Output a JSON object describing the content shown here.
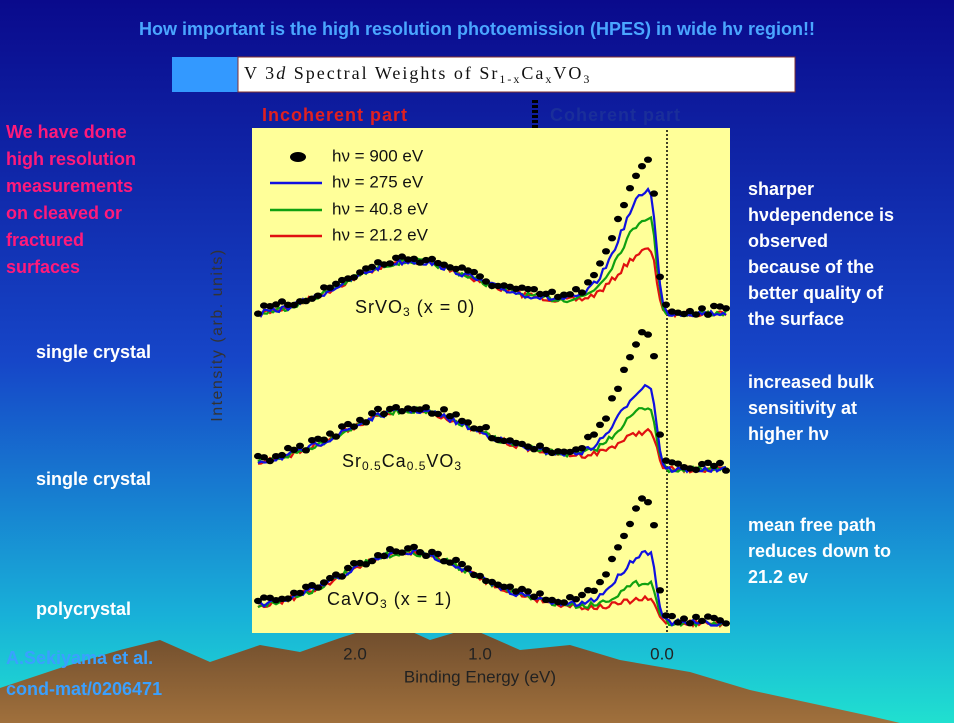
{
  "header": {
    "title": "How important is the high resolution photoemission (HPES) in wide hν region!!"
  },
  "banner": {
    "parts": [
      "V 3",
      "d",
      " Spectral Weights of Sr",
      "1-x",
      "Ca",
      "x",
      "VO",
      "3"
    ]
  },
  "chart": {
    "incoherent": "Incoherent part",
    "coherent": "Coherent part",
    "y_label": "Intensity (arb. units)",
    "x_label": "Binding Energy (eV)",
    "x_ticks": [
      "2.0",
      "1.0",
      "0.0"
    ],
    "legend": [
      "hν = 900 eV",
      "hν = 275 eV",
      "hν = 40.8 eV",
      "hν = 21.2 eV"
    ],
    "samples": [
      [
        "SrVO",
        "3",
        " (x = 0)"
      ],
      [
        "Sr",
        "0.5",
        "Ca",
        "0.5",
        "VO",
        "3"
      ],
      [
        "CaVO",
        "3",
        " (x = 1)"
      ]
    ]
  },
  "left_note": [
    "We have done",
    "high resolution",
    "measurements",
    "on cleaved or",
    "fractured",
    "surfaces"
  ],
  "left_labels": [
    "single crystal",
    "single crystal",
    "polycrystal"
  ],
  "right_notes": [
    [
      "sharper",
      "hνdependence is",
      "observed",
      "because of the",
      "better quality of",
      "the surface"
    ],
    [
      "increased bulk",
      "sensitivity at",
      "higher hν"
    ],
    [
      "mean free path",
      "reduces down to",
      "21.2 ev"
    ]
  ],
  "reference": [
    "A.Sekiyama et al.",
    "cond-mat/0206471"
  ]
}
